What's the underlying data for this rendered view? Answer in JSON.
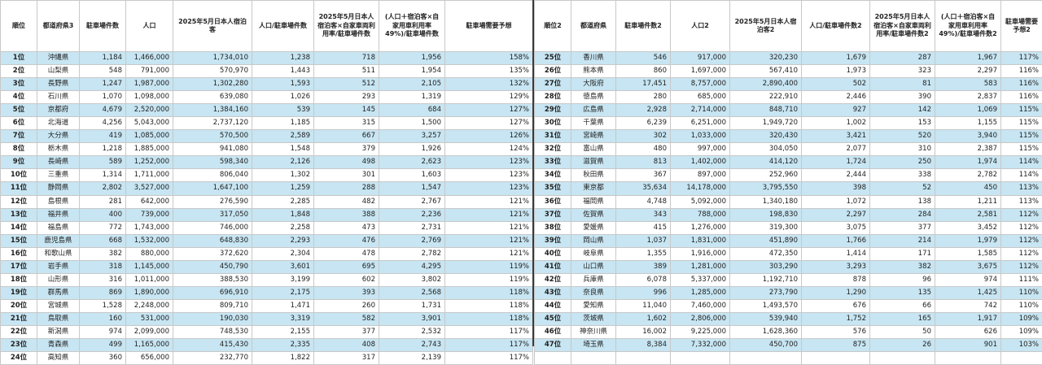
{
  "headers_left": [
    "順位",
    "都道府県3",
    "駐車場件数",
    "人口",
    "2025年5月日本人宿泊客",
    "人口/駐車場件数",
    "2025年5月日本人宿泊客×自家車両利用率/駐車場件数",
    "(人口＋宿泊客×自家用車利用率49%)/駐車場件数",
    "駐車場需要予想"
  ],
  "headers_right": [
    "順位2",
    "都道府県",
    "駐車場件数2",
    "人口2",
    "2025年5月日本人宿泊客2",
    "人口/駐車場件数2",
    "2025年5月日本人宿泊客×自家車両利用率/駐車場件数2",
    "(人口＋宿泊客×自家用車利用率49%)/駐車場件数2",
    "駐車場需要予想2"
  ],
  "rows_left": [
    [
      "1位",
      "沖縄県",
      "1,184",
      "1,466,000",
      "1,734,010",
      "1,238",
      "718",
      "1,956",
      "158%"
    ],
    [
      "2位",
      "山梨県",
      "548",
      "791,000",
      "570,970",
      "1,443",
      "511",
      "1,954",
      "135%"
    ],
    [
      "3位",
      "長野県",
      "1,247",
      "1,987,000",
      "1,302,280",
      "1,593",
      "512",
      "2,105",
      "132%"
    ],
    [
      "4位",
      "石川県",
      "1,070",
      "1,098,000",
      "639,080",
      "1,026",
      "293",
      "1,319",
      "129%"
    ],
    [
      "5位",
      "京都府",
      "4,679",
      "2,520,000",
      "1,384,160",
      "539",
      "145",
      "684",
      "127%"
    ],
    [
      "6位",
      "北海道",
      "4,256",
      "5,043,000",
      "2,737,120",
      "1,185",
      "315",
      "1,500",
      "127%"
    ],
    [
      "7位",
      "大分県",
      "419",
      "1,085,000",
      "570,500",
      "2,589",
      "667",
      "3,257",
      "126%"
    ],
    [
      "8位",
      "栃木県",
      "1,218",
      "1,885,000",
      "941,080",
      "1,548",
      "379",
      "1,926",
      "124%"
    ],
    [
      "9位",
      "長崎県",
      "589",
      "1,252,000",
      "598,340",
      "2,126",
      "498",
      "2,623",
      "123%"
    ],
    [
      "10位",
      "三重県",
      "1,314",
      "1,711,000",
      "806,040",
      "1,302",
      "301",
      "1,603",
      "123%"
    ],
    [
      "11位",
      "静岡県",
      "2,802",
      "3,527,000",
      "1,647,100",
      "1,259",
      "288",
      "1,547",
      "123%"
    ],
    [
      "12位",
      "島根県",
      "281",
      "642,000",
      "276,590",
      "2,285",
      "482",
      "2,767",
      "121%"
    ],
    [
      "13位",
      "福井県",
      "400",
      "739,000",
      "317,050",
      "1,848",
      "388",
      "2,236",
      "121%"
    ],
    [
      "14位",
      "福島県",
      "772",
      "1,743,000",
      "746,000",
      "2,258",
      "473",
      "2,731",
      "121%"
    ],
    [
      "15位",
      "鹿児島県",
      "668",
      "1,532,000",
      "648,830",
      "2,293",
      "476",
      "2,769",
      "121%"
    ],
    [
      "16位",
      "和歌山県",
      "382",
      "880,000",
      "372,620",
      "2,304",
      "478",
      "2,782",
      "121%"
    ],
    [
      "17位",
      "岩手県",
      "318",
      "1,145,000",
      "450,790",
      "3,601",
      "695",
      "4,295",
      "119%"
    ],
    [
      "18位",
      "山形県",
      "316",
      "1,011,000",
      "388,530",
      "3,199",
      "602",
      "3,802",
      "119%"
    ],
    [
      "19位",
      "群馬県",
      "869",
      "1,890,000",
      "696,910",
      "2,175",
      "393",
      "2,568",
      "118%"
    ],
    [
      "20位",
      "宮城県",
      "1,528",
      "2,248,000",
      "809,710",
      "1,471",
      "260",
      "1,731",
      "118%"
    ],
    [
      "21位",
      "鳥取県",
      "160",
      "531,000",
      "190,030",
      "3,319",
      "582",
      "3,901",
      "118%"
    ],
    [
      "22位",
      "新潟県",
      "974",
      "2,099,000",
      "748,530",
      "2,155",
      "377",
      "2,532",
      "117%"
    ],
    [
      "23位",
      "青森県",
      "499",
      "1,165,000",
      "415,430",
      "2,335",
      "408",
      "2,743",
      "117%"
    ],
    [
      "24位",
      "高知県",
      "360",
      "656,000",
      "232,770",
      "1,822",
      "317",
      "2,139",
      "117%"
    ]
  ],
  "rows_right": [
    [
      "25位",
      "香川県",
      "546",
      "917,000",
      "320,230",
      "1,679",
      "287",
      "1,967",
      "117%"
    ],
    [
      "26位",
      "熊本県",
      "860",
      "1,697,000",
      "567,410",
      "1,973",
      "323",
      "2,297",
      "116%"
    ],
    [
      "27位",
      "大阪府",
      "17,451",
      "8,757,000",
      "2,890,400",
      "502",
      "81",
      "583",
      "116%"
    ],
    [
      "28位",
      "徳島県",
      "280",
      "685,000",
      "222,910",
      "2,446",
      "390",
      "2,837",
      "116%"
    ],
    [
      "29位",
      "広島県",
      "2,928",
      "2,714,000",
      "848,710",
      "927",
      "142",
      "1,069",
      "115%"
    ],
    [
      "30位",
      "千葉県",
      "6,239",
      "6,251,000",
      "1,949,720",
      "1,002",
      "153",
      "1,155",
      "115%"
    ],
    [
      "31位",
      "宮崎県",
      "302",
      "1,033,000",
      "320,430",
      "3,421",
      "520",
      "3,940",
      "115%"
    ],
    [
      "32位",
      "富山県",
      "480",
      "997,000",
      "304,050",
      "2,077",
      "310",
      "2,387",
      "115%"
    ],
    [
      "33位",
      "滋賀県",
      "813",
      "1,402,000",
      "414,120",
      "1,724",
      "250",
      "1,974",
      "114%"
    ],
    [
      "34位",
      "秋田県",
      "367",
      "897,000",
      "252,960",
      "2,444",
      "338",
      "2,782",
      "114%"
    ],
    [
      "35位",
      "東京都",
      "35,634",
      "14,178,000",
      "3,795,550",
      "398",
      "52",
      "450",
      "113%"
    ],
    [
      "36位",
      "福岡県",
      "4,748",
      "5,092,000",
      "1,340,180",
      "1,072",
      "138",
      "1,211",
      "113%"
    ],
    [
      "37位",
      "佐賀県",
      "343",
      "788,000",
      "198,830",
      "2,297",
      "284",
      "2,581",
      "112%"
    ],
    [
      "38位",
      "愛媛県",
      "415",
      "1,276,000",
      "319,300",
      "3,075",
      "377",
      "3,452",
      "112%"
    ],
    [
      "39位",
      "岡山県",
      "1,037",
      "1,831,000",
      "451,890",
      "1,766",
      "214",
      "1,979",
      "112%"
    ],
    [
      "40位",
      "岐阜県",
      "1,355",
      "1,916,000",
      "472,350",
      "1,414",
      "171",
      "1,585",
      "112%"
    ],
    [
      "41位",
      "山口県",
      "389",
      "1,281,000",
      "303,290",
      "3,293",
      "382",
      "3,675",
      "112%"
    ],
    [
      "42位",
      "兵庫県",
      "6,078",
      "5,337,000",
      "1,192,710",
      "878",
      "96",
      "974",
      "111%"
    ],
    [
      "43位",
      "奈良県",
      "996",
      "1,285,000",
      "273,790",
      "1,290",
      "135",
      "1,425",
      "110%"
    ],
    [
      "44位",
      "愛知県",
      "11,040",
      "7,460,000",
      "1,493,570",
      "676",
      "66",
      "742",
      "110%"
    ],
    [
      "45位",
      "茨城県",
      "1,602",
      "2,806,000",
      "539,940",
      "1,752",
      "165",
      "1,917",
      "109%"
    ],
    [
      "46位",
      "神奈川県",
      "16,002",
      "9,225,000",
      "1,628,360",
      "576",
      "50",
      "626",
      "109%"
    ],
    [
      "47位",
      "埼玉県",
      "8,384",
      "7,332,000",
      "450,700",
      "875",
      "26",
      "901",
      "103%"
    ]
  ]
}
